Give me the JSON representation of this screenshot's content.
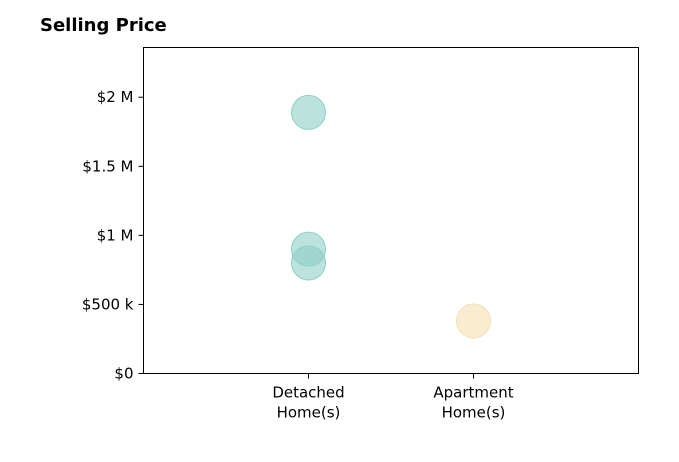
{
  "chart_data": {
    "type": "scatter",
    "title": "Selling Price",
    "xlabel": "",
    "ylabel": "",
    "categories": [
      "Detached Home(s)",
      "Apartment Home(s)"
    ],
    "category_label_lines": [
      [
        "Detached",
        "Home(s)"
      ],
      [
        "Apartment",
        "Home(s)"
      ]
    ],
    "y_ticks": [
      {
        "value": 0,
        "label": "$0"
      },
      {
        "value": 500000,
        "label": "$500 k"
      },
      {
        "value": 1000000,
        "label": "$1 M"
      },
      {
        "value": 1500000,
        "label": "$1.5 M"
      },
      {
        "value": 2000000,
        "label": "$2 M"
      }
    ],
    "ylim": [
      0,
      2360000
    ],
    "xlim": [
      -1,
      2
    ],
    "grid": false,
    "points": [
      {
        "category": "Detached Home(s)",
        "value": 1890000,
        "color": "#8ecfc6"
      },
      {
        "category": "Detached Home(s)",
        "value": 900000,
        "color": "#8ecfc6"
      },
      {
        "category": "Detached Home(s)",
        "value": 800000,
        "color": "#8ecfc6"
      },
      {
        "category": "Apartment Home(s)",
        "value": 380000,
        "color": "#f6dfb3"
      }
    ]
  }
}
